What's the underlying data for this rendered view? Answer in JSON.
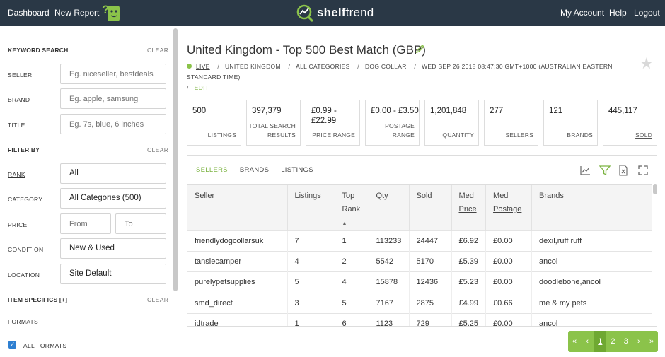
{
  "header": {
    "nav_left": [
      "Dashboard",
      "New Report"
    ],
    "logo_text_bold": "shelf",
    "logo_text_rest": "trend",
    "nav_right": [
      "My Account",
      "Help",
      "Logout"
    ]
  },
  "sidebar": {
    "keyword_search": "KEYWORD SEARCH",
    "clear": "CLEAR",
    "seller_label": "SELLER",
    "seller_placeholder": "Eg. niceseller, bestdeals",
    "brand_label": "BRAND",
    "brand_placeholder": "Eg. apple, samsung",
    "title_label": "TITLE",
    "title_placeholder": "Eg. 7s, blue, 6 inches",
    "filter_by": "FILTER BY",
    "rank_label": "RANK",
    "rank_value": "All",
    "category_label": "CATEGORY",
    "category_value": "All Categories (500)",
    "price_label": "PRICE",
    "price_from": "From",
    "price_to": "To",
    "condition_label": "CONDITION",
    "condition_value": "New & Used",
    "location_label": "LOCATION",
    "location_value": "Site Default",
    "item_specifics": "ITEM SPECIFICS [+]",
    "formats": "FORMATS",
    "all_formats": "ALL FORMATS"
  },
  "report": {
    "title": "United Kingdom - Top 500 Best Match (GBP)",
    "crumbs": [
      "LIVE",
      "UNITED KINGDOM",
      "ALL CATEGORIES",
      "DOG COLLAR",
      "WED SEP 26 2018 08:47:30 GMT+1000 (AUSTRALIAN EASTERN STANDARD TIME)"
    ],
    "edit": "EDIT"
  },
  "stats": [
    {
      "value": "500",
      "label": "LISTINGS"
    },
    {
      "value": "397,379",
      "label": "TOTAL SEARCH RESULTS"
    },
    {
      "value": "£0.99 - £22.99",
      "label": "PRICE RANGE"
    },
    {
      "value": "£0.00 - £3.50",
      "label": "POSTAGE RANGE"
    },
    {
      "value": "1,201,848",
      "label": "QUANTITY"
    },
    {
      "value": "277",
      "label": "SELLERS"
    },
    {
      "value": "121",
      "label": "BRANDS"
    },
    {
      "value": "445,117",
      "label": "SOLD"
    }
  ],
  "tabs": [
    "SELLERS",
    "BRANDS",
    "LISTINGS"
  ],
  "table": {
    "headers": [
      "Seller",
      "Listings",
      "Top Rank",
      "Qty",
      "Sold",
      "Med Price",
      "Med Postage",
      "Brands"
    ],
    "rows": [
      [
        "friendlydogcollarsuk",
        "7",
        "1",
        "113233",
        "24447",
        "£6.92",
        "£0.00",
        "dexil,ruff ruff"
      ],
      [
        "tansiecamper",
        "4",
        "2",
        "5542",
        "5170",
        "£5.39",
        "£0.00",
        "ancol"
      ],
      [
        "purelypetsupplies",
        "5",
        "4",
        "15878",
        "12436",
        "£5.23",
        "£0.00",
        "doodlebone,ancol"
      ],
      [
        "smd_direct",
        "3",
        "5",
        "7167",
        "2875",
        "£4.99",
        "£0.66",
        "me & my pets"
      ],
      [
        "idtrade",
        "1",
        "6",
        "1123",
        "729",
        "£5.25",
        "£0.00",
        "ancol"
      ]
    ]
  },
  "pager": [
    "«",
    "‹",
    "1",
    "2",
    "3",
    "›",
    "»"
  ],
  "colors": {
    "header_bg": "#2a3846",
    "accent": "#8bc34a",
    "checkbox": "#2e7fd1"
  }
}
